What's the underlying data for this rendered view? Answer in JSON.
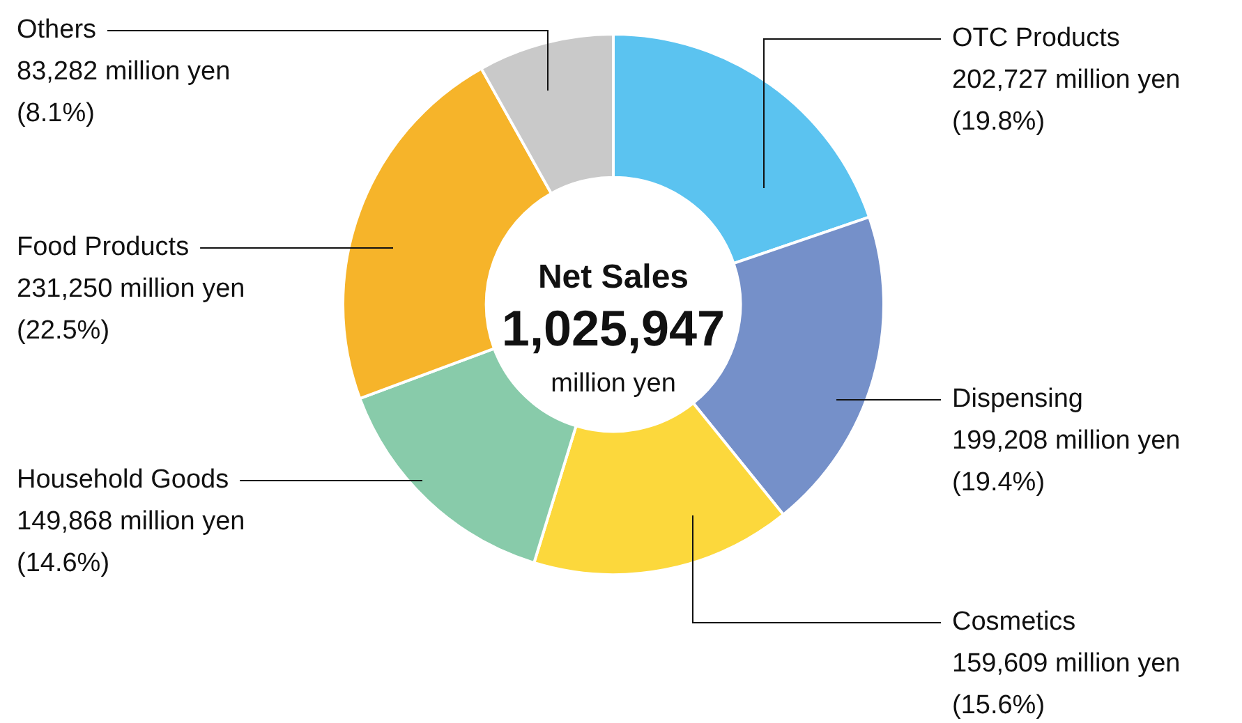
{
  "chart_data": {
    "type": "donut",
    "categories": [
      "OTC Products",
      "Dispensing",
      "Cosmetics",
      "Household Goods",
      "Food Products",
      "Others"
    ],
    "values": [
      202727,
      199208,
      159609,
      149868,
      231250,
      83282
    ],
    "colors": [
      "#5bc3f0",
      "#7590c9",
      "#fcd83c",
      "#88cbaa",
      "#f6b42a",
      "#c9c9c9"
    ],
    "value_labels": [
      "202,727 million yen",
      "199,208 million yen",
      "159,609 million yen",
      "149,868 million yen",
      "231,250 million yen",
      "83,282 million yen"
    ],
    "annotations": [
      "Net Sales",
      "1,025,947",
      "million yen",
      {
        "text": "(19.8%)",
        "x": "OTC Products"
      },
      {
        "text": "(19.4%)",
        "x": "Dispensing"
      },
      {
        "text": "(15.6%)",
        "x": "Cosmetics"
      },
      {
        "text": "(14.6%)",
        "x": "Household Goods"
      },
      {
        "text": "(22.5%)",
        "x": "Food Products"
      },
      {
        "text": "(8.1%)",
        "x": "Others"
      }
    ],
    "legend": false
  }
}
